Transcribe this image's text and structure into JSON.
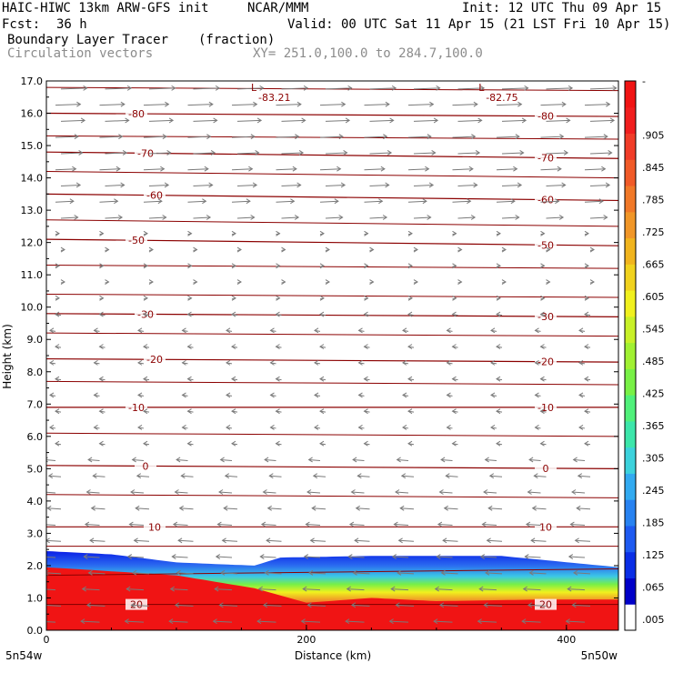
{
  "header": {
    "model": "HAIC-HIWC 13km ARW-GFS init",
    "org": "NCAR/MMM",
    "init": "Init: 12 UTC Thu 09 Apr 15",
    "fcst_label": "Fcst:",
    "fcst_value": "36 h",
    "valid": "Valid: 00 UTC Sat 11 Apr 15 (21 LST Fri 10 Apr 15)",
    "field": "Boundary Layer Tracer",
    "units": "(fraction)",
    "vectors": "Circulation vectors",
    "xy": "XY= 251.0,100.0 to 284.7,100.0"
  },
  "colors": {
    "contour": "#8b0000",
    "vector": "#7a7a7a",
    "colorbar": [
      "#ffffff",
      "#0000c8",
      "#0a2ee6",
      "#1e5af0",
      "#2882f0",
      "#32aaf0",
      "#3cd2dc",
      "#3ce6aa",
      "#50f07a",
      "#78f046",
      "#a0f032",
      "#c8f028",
      "#f0f01e",
      "#f0d21e",
      "#f0b41e",
      "#f09628",
      "#f07828",
      "#f05a28",
      "#f03c28",
      "#f01e1e",
      "#f01414"
    ]
  },
  "chart_data": {
    "type": "cross-section",
    "xlabel": "Distance (km)",
    "ylabel": "Height (km)",
    "xlim": [
      0,
      440
    ],
    "ylim": [
      0,
      17
    ],
    "xticks": [
      "0",
      "200",
      "400"
    ],
    "yticks": [
      "0.0",
      "1.0",
      "2.0",
      "3.0",
      "4.0",
      "5.0",
      "6.0",
      "7.0",
      "8.0",
      "9.0",
      "10.0",
      "11.0",
      "12.0",
      "13.0",
      "14.0",
      "15.0",
      "16.0",
      "17.0"
    ],
    "left_endpoint": "5n54w",
    "right_endpoint": "5n50w",
    "colorbar_ticks": [
      ".005",
      ".065",
      ".125",
      ".185",
      ".245",
      ".305",
      ".365",
      ".425",
      ".485",
      ".545",
      ".605",
      ".665",
      ".725",
      ".785",
      ".845",
      ".905",
      "-"
    ],
    "minima": [
      {
        "symbol": "L",
        "value": "-83.21",
        "x": 170
      },
      {
        "symbol": "L",
        "value": "-82.75",
        "x": 345
      }
    ],
    "temperature_contours": [
      {
        "label": "-80",
        "heights": [
          16.0,
          15.9
        ]
      },
      {
        "label": "-70",
        "heights": [
          14.8,
          14.6
        ]
      },
      {
        "label": "-60",
        "heights": [
          13.5,
          13.3
        ]
      },
      {
        "label": "-50",
        "heights": [
          12.1,
          11.9
        ]
      },
      {
        "label": "-30",
        "heights": [
          9.8,
          9.7
        ]
      },
      {
        "label": "-20",
        "heights": [
          8.4,
          8.3
        ]
      },
      {
        "label": "-10",
        "heights": [
          6.9,
          6.9
        ]
      },
      {
        "label": "0",
        "heights": [
          5.1,
          5.0
        ]
      },
      {
        "label": "10",
        "heights": [
          3.2,
          3.2
        ]
      },
      {
        "label": "20",
        "heights": [
          0.8,
          0.8
        ]
      }
    ],
    "tracer_top_km": [
      {
        "x": 0,
        "top": 2.45
      },
      {
        "x": 50,
        "top": 2.35
      },
      {
        "x": 100,
        "top": 2.1
      },
      {
        "x": 160,
        "top": 2.0
      },
      {
        "x": 180,
        "top": 2.25
      },
      {
        "x": 250,
        "top": 2.3
      },
      {
        "x": 350,
        "top": 2.3
      },
      {
        "x": 440,
        "top": 1.95
      }
    ],
    "tracer_red_top_km": [
      {
        "x": 0,
        "top": 1.95
      },
      {
        "x": 100,
        "top": 1.7
      },
      {
        "x": 160,
        "top": 1.3
      },
      {
        "x": 200,
        "top": 0.85
      },
      {
        "x": 250,
        "top": 1.0
      },
      {
        "x": 300,
        "top": 0.9
      },
      {
        "x": 380,
        "top": 0.95
      },
      {
        "x": 440,
        "top": 0.95
      }
    ]
  }
}
